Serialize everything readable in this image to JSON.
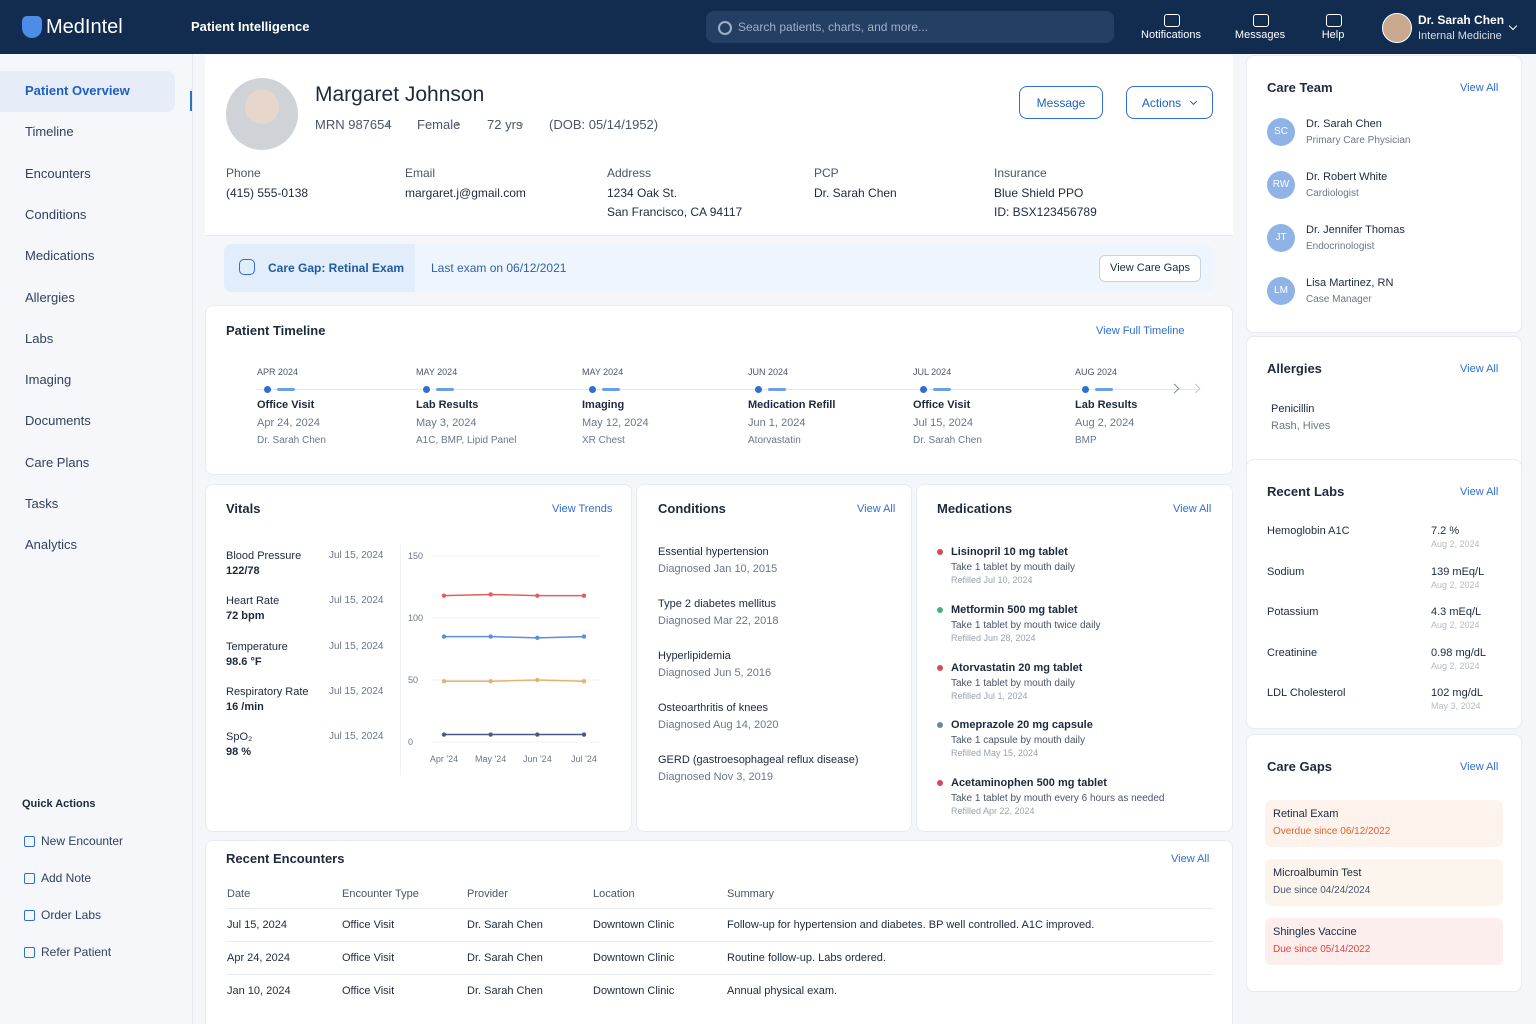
{
  "header": {
    "brand": "MedIntel",
    "app_name": "Patient Intelligence",
    "search_placeholder": "Search patients, charts, and more...",
    "nav": [
      "Notifications",
      "Messages",
      "Help"
    ],
    "user": {
      "name": "Dr. Sarah Chen",
      "role": "Internal Medicine"
    }
  },
  "sidebar": {
    "items": [
      "Patient Overview",
      "Timeline",
      "Encounters",
      "Conditions",
      "Medications",
      "Allergies",
      "Labs",
      "Imaging",
      "Documents",
      "Care Plans",
      "Tasks",
      "Analytics"
    ],
    "quick_actions": {
      "title": "Quick Actions",
      "items": [
        "New Encounter",
        "Add Note",
        "Order Labs",
        "Refer Patient"
      ]
    }
  },
  "patient": {
    "name": "Margaret Johnson",
    "meta": [
      "MRN 987654",
      "Female",
      "72 yrs",
      "(DOB: 05/14/1952)"
    ],
    "buttons": [
      "Message",
      "Actions"
    ],
    "fields": [
      {
        "label": "Phone",
        "lines": [
          "(415) 555-0138"
        ]
      },
      {
        "label": "Email",
        "lines": [
          "margaret.j@gmail.com"
        ]
      },
      {
        "label": "Address",
        "lines": [
          "1234 Oak St.",
          "San Francisco, CA 94117"
        ]
      },
      {
        "label": "PCP",
        "lines": [
          "Dr. Sarah Chen"
        ]
      },
      {
        "label": "Insurance",
        "lines": [
          "Blue Shield PPO",
          "ID: BSX123456789"
        ]
      }
    ]
  },
  "care_gap_banner": {
    "title": "Care Gap: Retinal Exam",
    "detail": "Last exam on 06/12/2021",
    "button": "View Care Gaps"
  },
  "timeline": {
    "title": "Patient Timeline",
    "link": "View Full Timeline",
    "events": [
      {
        "month": "APR 2024",
        "type": "Office Visit",
        "date": "Apr 24, 2024",
        "detail": "Dr. Sarah Chen"
      },
      {
        "month": "MAY 2024",
        "type": "Lab Results",
        "date": "May 3, 2024",
        "detail": "A1C, BMP, Lipid Panel"
      },
      {
        "month": "MAY 2024",
        "type": "Imaging",
        "date": "May 12, 2024",
        "detail": "XR Chest"
      },
      {
        "month": "JUN 2024",
        "type": "Medication Refill",
        "date": "Jun 1, 2024",
        "detail": "Atorvastatin"
      },
      {
        "month": "JUL 2024",
        "type": "Office Visit",
        "date": "Jul 15, 2024",
        "detail": "Dr. Sarah Chen"
      },
      {
        "month": "AUG 2024",
        "type": "Lab Results",
        "date": "Aug 2, 2024",
        "detail": "BMP"
      }
    ]
  },
  "vitals": {
    "title": "Vitals",
    "link": "View Trends",
    "items": [
      {
        "label": "Blood Pressure",
        "value": "122/78",
        "date": "Jul 15, 2024"
      },
      {
        "label": "Heart Rate",
        "value": "72 bpm",
        "date": "Jul 15, 2024"
      },
      {
        "label": "Temperature",
        "value": "98.6 °F",
        "date": "Jul 15, 2024"
      },
      {
        "label": "Respiratory Rate",
        "value": "16 /min",
        "date": "Jul 15, 2024"
      },
      {
        "label": "SpO₂",
        "value": "98 %",
        "date": "Jul 15, 2024"
      }
    ],
    "chart_data": {
      "type": "line",
      "categories": [
        "Apr '24",
        "May '24",
        "Jun '24",
        "Jul '24"
      ],
      "ylim": [
        0,
        150
      ],
      "yticks": [
        0,
        50,
        100,
        150
      ],
      "grid": true,
      "series": [
        {
          "color": "#e06060",
          "values": [
            118,
            119,
            118,
            118
          ]
        },
        {
          "color": "#5b8fd9",
          "values": [
            85,
            85,
            84,
            85
          ]
        },
        {
          "color": "#e2b56c",
          "values": [
            49,
            49,
            50,
            49
          ]
        },
        {
          "color": "#4a5a80",
          "values": [
            6,
            6,
            6,
            6
          ]
        }
      ]
    }
  },
  "conditions": {
    "title": "Conditions",
    "link": "View All",
    "items": [
      {
        "name": "Essential hypertension",
        "diagnosed": "Diagnosed Jan 10, 2015"
      },
      {
        "name": "Type 2 diabetes mellitus",
        "diagnosed": "Diagnosed Mar 22, 2018"
      },
      {
        "name": "Hyperlipidemia",
        "diagnosed": "Diagnosed Jun 5, 2016"
      },
      {
        "name": "Osteoarthritis of knees",
        "diagnosed": "Diagnosed Aug 14, 2020"
      },
      {
        "name": "GERD (gastroesophageal reflux disease)",
        "diagnosed": "Diagnosed Nov 3, 2019"
      }
    ]
  },
  "medications": {
    "title": "Medications",
    "link": "View All",
    "items": [
      {
        "name": "Lisinopril 10 mg tablet",
        "sig": "Take 1 tablet by mouth daily",
        "refill": "Refilled Jul 10, 2024",
        "color": "#d9475a"
      },
      {
        "name": "Metformin 500 mg tablet",
        "sig": "Take 1 tablet by mouth twice daily",
        "refill": "Refilled Jun 28, 2024",
        "color": "#4caf7d"
      },
      {
        "name": "Atorvastatin 20 mg tablet",
        "sig": "Take 1 tablet by mouth daily",
        "refill": "Refilled Jul 1, 2024",
        "color": "#d9475a"
      },
      {
        "name": "Omeprazole 20 mg capsule",
        "sig": "Take 1 capsule by mouth daily",
        "refill": "Refilled May 15, 2024",
        "color": "#6a86b0"
      },
      {
        "name": "Acetaminophen 500 mg tablet",
        "sig": "Take 1 tablet by mouth every 6 hours as needed",
        "refill": "Refilled Apr 22, 2024",
        "color": "#d9475a"
      }
    ]
  },
  "encounters": {
    "title": "Recent Encounters",
    "link": "View All",
    "columns": [
      "Date",
      "Encounter Type",
      "Provider",
      "Location",
      "Summary"
    ],
    "rows": [
      [
        "Jul 15, 2024",
        "Office Visit",
        "Dr. Sarah Chen",
        "Downtown Clinic",
        "Follow-up for hypertension and diabetes. BP well controlled. A1C improved."
      ],
      [
        "Apr 24, 2024",
        "Office Visit",
        "Dr. Sarah Chen",
        "Downtown Clinic",
        "Routine follow-up. Labs ordered."
      ],
      [
        "Jan 10, 2024",
        "Office Visit",
        "Dr. Sarah Chen",
        "Downtown Clinic",
        "Annual physical exam."
      ]
    ]
  },
  "care_team": {
    "title": "Care Team",
    "link": "View All",
    "members": [
      {
        "initials": "SC",
        "name": "Dr. Sarah Chen",
        "role": "Primary Care Physician"
      },
      {
        "initials": "RW",
        "name": "Dr. Robert White",
        "role": "Cardiologist"
      },
      {
        "initials": "JT",
        "name": "Dr. Jennifer Thomas",
        "role": "Endocrinologist"
      },
      {
        "initials": "LM",
        "name": "Lisa Martinez, RN",
        "role": "Case Manager"
      }
    ]
  },
  "allergies": {
    "title": "Allergies",
    "link": "View All",
    "items": [
      {
        "name": "Penicillin",
        "reaction": "Rash, Hives"
      }
    ]
  },
  "recent_labs": {
    "title": "Recent Labs",
    "link": "View All",
    "items": [
      {
        "name": "Hemoglobin A1C",
        "value": "7.2 %",
        "date": "Aug 2, 2024"
      },
      {
        "name": "Sodium",
        "value": "139 mEq/L",
        "date": "Aug 2, 2024"
      },
      {
        "name": "Potassium",
        "value": "4.3 mEq/L",
        "date": "Aug 2, 2024"
      },
      {
        "name": "Creatinine",
        "value": "0.98 mg/dL",
        "date": "Aug 2, 2024"
      },
      {
        "name": "LDL Cholesterol",
        "value": "102 mg/dL",
        "date": "May 3, 2024"
      }
    ]
  },
  "care_gaps": {
    "title": "Care Gaps",
    "link": "View All",
    "items": [
      {
        "name": "Retinal Exam",
        "status": "Overdue since 06/12/2022",
        "color": "#e0612f",
        "background": "#fdf3ec"
      },
      {
        "name": "Microalbumin Test",
        "status": "Due since 04/24/2024",
        "color": "#4a5568",
        "background": "#fcf5ee"
      },
      {
        "name": "Shingles Vaccine",
        "status": "Due since 05/14/2022",
        "color": "#e0453c",
        "background": "#fdeeee"
      }
    ]
  }
}
